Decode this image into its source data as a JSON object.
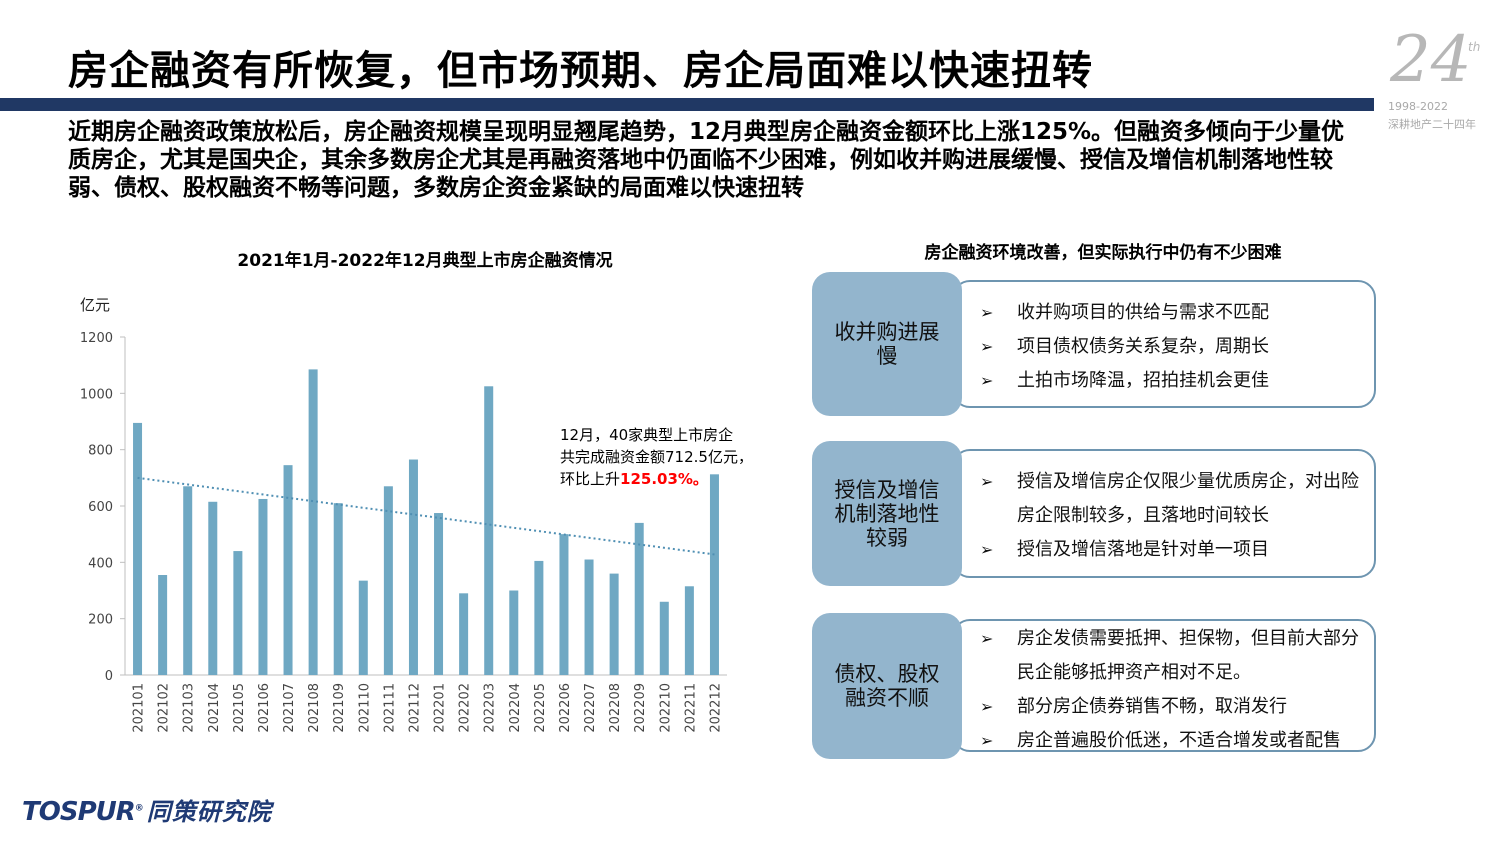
{
  "header": {
    "title": "房企融资有所恢复，但市场预期、房企局面难以快速扭转",
    "deco_number": "24",
    "deco_suffix": "th",
    "deco_years": "1998-2022",
    "deco_caption": "深耕地产二十四年"
  },
  "summary": "近期房企融资政策放松后，房企融资规模呈现明显翘尾趋势，12月典型房企融资金额环比上涨125%。但融资多倾向于少量优质房企，尤其是国央企，其余多数房企尤其是再融资落地中仍面临不少困难，例如收并购进展缓慢、授信及增信机制落地性较弱、债权、股权融资不畅等问题，多数房企资金紧缺的局面难以快速扭转",
  "chart_data": {
    "type": "bar",
    "title": "2021年1月-2022年12月典型上市房企融资情况",
    "ylabel": "亿元",
    "xlabel": "",
    "ylim": [
      0,
      1200
    ],
    "yticks": [
      0,
      200,
      400,
      600,
      800,
      1000,
      1200
    ],
    "categories": [
      "202101",
      "202102",
      "202103",
      "202104",
      "202105",
      "202106",
      "202107",
      "202108",
      "202109",
      "202110",
      "202111",
      "202112",
      "202201",
      "202202",
      "202203",
      "202204",
      "202205",
      "202206",
      "202207",
      "202208",
      "202209",
      "202210",
      "202211",
      "202212"
    ],
    "values": [
      895,
      355,
      670,
      615,
      440,
      625,
      745,
      1085,
      610,
      335,
      670,
      765,
      575,
      290,
      1025,
      300,
      405,
      500,
      410,
      360,
      540,
      260,
      315,
      712.5
    ],
    "trendline": {
      "style": "dotted linear",
      "start": 700,
      "end": 428
    },
    "bar_color": "#6fa8c3",
    "trend_color": "#4f8fb3"
  },
  "callout": {
    "line1": "12月，40家典型上市房企",
    "line2": "共完成融资金额712.5亿元，",
    "line3_prefix": "环比上升",
    "line3_highlight": "125.03%。"
  },
  "right_panel": {
    "title": "房企融资环境改善，但实际执行中仍有不少困难",
    "arrow": "➢",
    "items": [
      {
        "tag": "收并购进展慢",
        "bullets": [
          "收并购项目的供给与需求不匹配",
          "项目债权债务关系复杂，周期长",
          "土拍市场降温，招拍挂机会更佳"
        ]
      },
      {
        "tag": "授信及增信机制落地性较弱",
        "bullets": [
          "授信及增信房企仅限少量优质房企，对出险房企限制较多，且落地时间较长",
          "授信及增信落地是针对单一项目"
        ]
      },
      {
        "tag": "债权、股权融资不顺",
        "bullets": [
          "房企发债需要抵押、担保物，但目前大部分民企能够抵押资产相对不足。",
          "部分房企债券销售不畅，取消发行",
          "房企普遍股价低迷，不适合增发或者配售"
        ]
      }
    ]
  },
  "logo": {
    "text_t": "T",
    "text_o": "O",
    "text_spur": "SPUR",
    "registered": "®",
    "name": "同策研究院"
  },
  "colors": {
    "title_bar": "#203864",
    "tag_bg": "#93b5cd",
    "box_border": "#6e95b0",
    "highlight": "#ff0000"
  }
}
